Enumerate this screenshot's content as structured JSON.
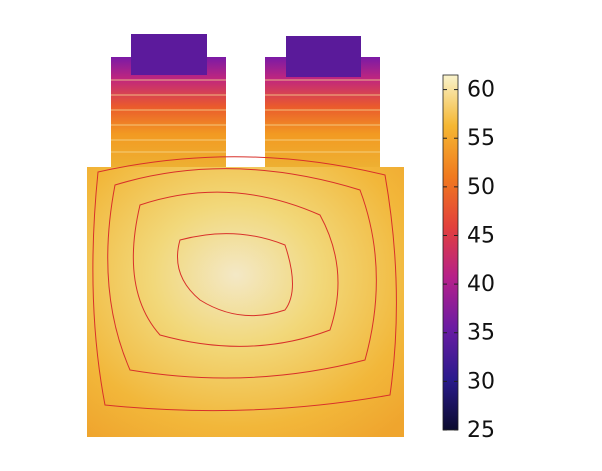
{
  "chart_data": {
    "type": "contour",
    "clim": [
      25,
      61.5
    ],
    "cticks": [
      25,
      30,
      35,
      40,
      45,
      50,
      55,
      60
    ],
    "colormap": [
      "#0b0b2e",
      "#2a1b8c",
      "#6a1ca3",
      "#b5208a",
      "#e2403c",
      "#f07a1e",
      "#f5b733",
      "#f9f3cc"
    ]
  }
}
